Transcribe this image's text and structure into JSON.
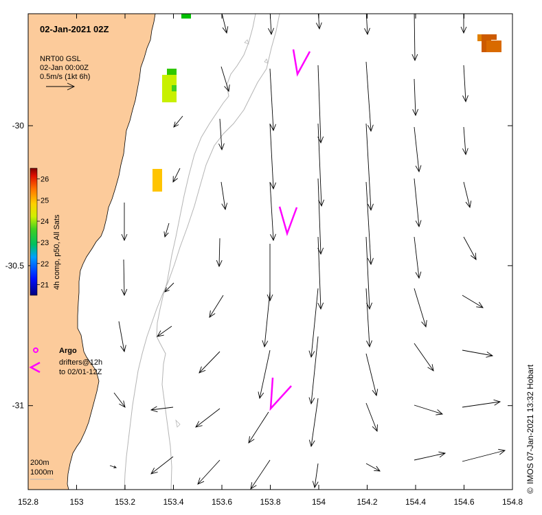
{
  "map": {
    "title": "02-Jan-2021 02Z",
    "velocity_legend": {
      "line1": "NRT00 GSL",
      "line2": "02-Jan 00:00Z",
      "line3": "0.5m/s (1kt 6h)"
    },
    "colorbar": {
      "label": "4h comp, p50, All Sats",
      "min": 20.5,
      "max": 26.5,
      "ticks": [
        "21",
        "22",
        "23",
        "24",
        "25",
        "26"
      ],
      "tick_values": [
        21,
        22,
        23,
        24,
        25,
        26
      ]
    },
    "legend": {
      "argo_label": "Argo",
      "drifters_line1": "drifters@12h",
      "drifters_line2": "to 02/01-12Z",
      "argo_color": "#ff00ff"
    },
    "depth_labels": [
      "200m",
      "1000m"
    ],
    "credit": "IMOS 07-Jan-2021 13:32 Hobart",
    "credit_symbol": "©",
    "axes": {
      "x_ticks": [
        "152.8",
        "153",
        "153.2",
        "153.4",
        "153.6",
        "153.8",
        "154",
        "154.2",
        "154.4",
        "154.6",
        "154.8"
      ],
      "x_values": [
        152.8,
        153.0,
        153.2,
        153.4,
        153.6,
        153.8,
        154.0,
        154.2,
        154.4,
        154.6,
        154.8
      ],
      "y_ticks": [
        "-30",
        "-30.5",
        "-31"
      ],
      "y_values": [
        -30.0,
        -30.5,
        -31.0
      ],
      "xlim": [
        152.8,
        154.8
      ],
      "ylim": [
        -31.3,
        -29.6
      ]
    },
    "colors": {
      "land": "#fccb9b",
      "sea": "#ffffff",
      "bathymetry": "#b4b4b4",
      "arrow": "#000000"
    }
  }
}
